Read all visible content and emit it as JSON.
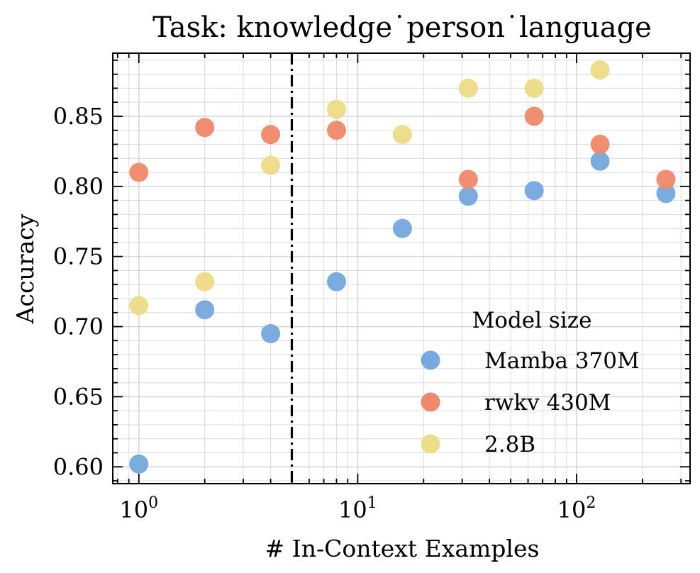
{
  "chart_data": {
    "type": "scatter",
    "title": "Task: knowledge˙person˙language",
    "xlabel": "# In-Context Examples",
    "ylabel": "Accuracy",
    "xscale": "log",
    "xlim": [
      0.76,
      330
    ],
    "ylim": [
      0.588,
      0.895
    ],
    "xticks": [
      {
        "value": 1,
        "base": "10",
        "exp": "0"
      },
      {
        "value": 10,
        "base": "10",
        "exp": "1"
      },
      {
        "value": 100,
        "base": "10",
        "exp": "2"
      }
    ],
    "yticks": [
      {
        "value": 0.6,
        "label": "0.60"
      },
      {
        "value": 0.65,
        "label": "0.65"
      },
      {
        "value": 0.7,
        "label": "0.70"
      },
      {
        "value": 0.75,
        "label": "0.75"
      },
      {
        "value": 0.8,
        "label": "0.80"
      },
      {
        "value": 0.85,
        "label": "0.85"
      }
    ],
    "vline": {
      "x": 5,
      "style": "dash-dot"
    },
    "grid": true,
    "legend": {
      "title": "Model size",
      "placement": "lower-right"
    },
    "series": [
      {
        "name": "Mamba 370M",
        "color": "#78A9DE",
        "x": [
          1,
          2,
          4,
          8,
          16,
          32,
          64,
          128,
          256
        ],
        "y": [
          0.602,
          0.712,
          0.695,
          0.732,
          0.77,
          0.793,
          0.797,
          0.818,
          0.795
        ]
      },
      {
        "name": "rwkv 430M",
        "color": "#EE8A6B",
        "x": [
          1,
          2,
          4,
          8,
          32,
          64,
          128,
          256
        ],
        "y": [
          0.81,
          0.842,
          0.837,
          0.84,
          0.805,
          0.85,
          0.83,
          0.805
        ]
      },
      {
        "name": "2.8B",
        "color": "#EEDC8A",
        "x": [
          1,
          2,
          4,
          8,
          16,
          32,
          64,
          128
        ],
        "y": [
          0.715,
          0.732,
          0.815,
          0.855,
          0.837,
          0.87,
          0.87,
          0.883
        ]
      }
    ]
  }
}
